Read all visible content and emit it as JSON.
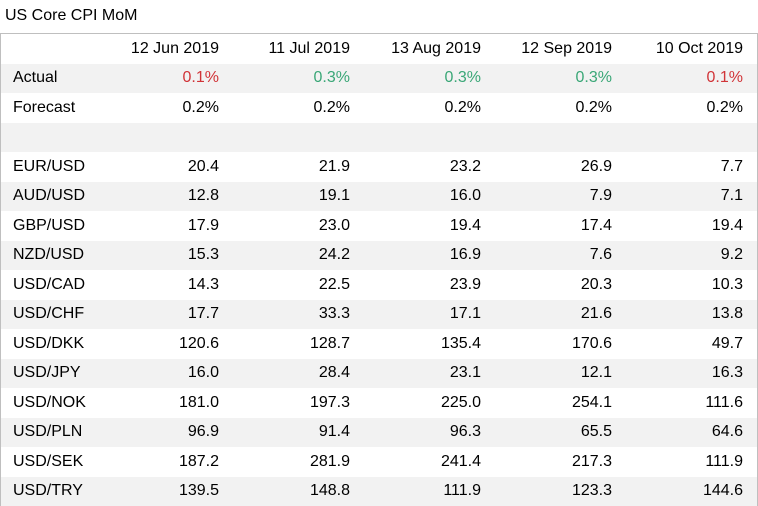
{
  "title": "US Core CPI MoM",
  "colors": {
    "down": "#d13438",
    "up": "#3aa777",
    "shade": "#f2f2f2"
  },
  "header": [
    "12 Jun 2019",
    "11 Jul 2019",
    "13 Aug 2019",
    "12 Sep 2019",
    "10 Oct 2019"
  ],
  "actual": {
    "label": "Actual",
    "values": [
      "0.1%",
      "0.3%",
      "0.3%",
      "0.3%",
      "0.1%"
    ],
    "directions": [
      "down",
      "up",
      "up",
      "up",
      "down"
    ]
  },
  "forecast": {
    "label": "Forecast",
    "values": [
      "0.2%",
      "0.2%",
      "0.2%",
      "0.2%",
      "0.2%"
    ]
  },
  "pairs": [
    {
      "label": "EUR/USD",
      "values": [
        "20.4",
        "21.9",
        "23.2",
        "26.9",
        "7.7"
      ]
    },
    {
      "label": "AUD/USD",
      "values": [
        "12.8",
        "19.1",
        "16.0",
        "7.9",
        "7.1"
      ]
    },
    {
      "label": "GBP/USD",
      "values": [
        "17.9",
        "23.0",
        "19.4",
        "17.4",
        "19.4"
      ]
    },
    {
      "label": "NZD/USD",
      "values": [
        "15.3",
        "24.2",
        "16.9",
        "7.6",
        "9.2"
      ]
    },
    {
      "label": "USD/CAD",
      "values": [
        "14.3",
        "22.5",
        "23.9",
        "20.3",
        "10.3"
      ]
    },
    {
      "label": "USD/CHF",
      "values": [
        "17.7",
        "33.3",
        "17.1",
        "21.6",
        "13.8"
      ]
    },
    {
      "label": "USD/DKK",
      "values": [
        "120.6",
        "128.7",
        "135.4",
        "170.6",
        "49.7"
      ]
    },
    {
      "label": "USD/JPY",
      "values": [
        "16.0",
        "28.4",
        "23.1",
        "12.1",
        "16.3"
      ]
    },
    {
      "label": "USD/NOK",
      "values": [
        "181.0",
        "197.3",
        "225.0",
        "254.1",
        "111.6"
      ]
    },
    {
      "label": "USD/PLN",
      "values": [
        "96.9",
        "91.4",
        "96.3",
        "65.5",
        "64.6"
      ]
    },
    {
      "label": "USD/SEK",
      "values": [
        "187.2",
        "281.9",
        "241.4",
        "217.3",
        "111.9"
      ]
    },
    {
      "label": "USD/TRY",
      "values": [
        "139.5",
        "148.8",
        "111.9",
        "123.3",
        "144.6"
      ]
    }
  ]
}
